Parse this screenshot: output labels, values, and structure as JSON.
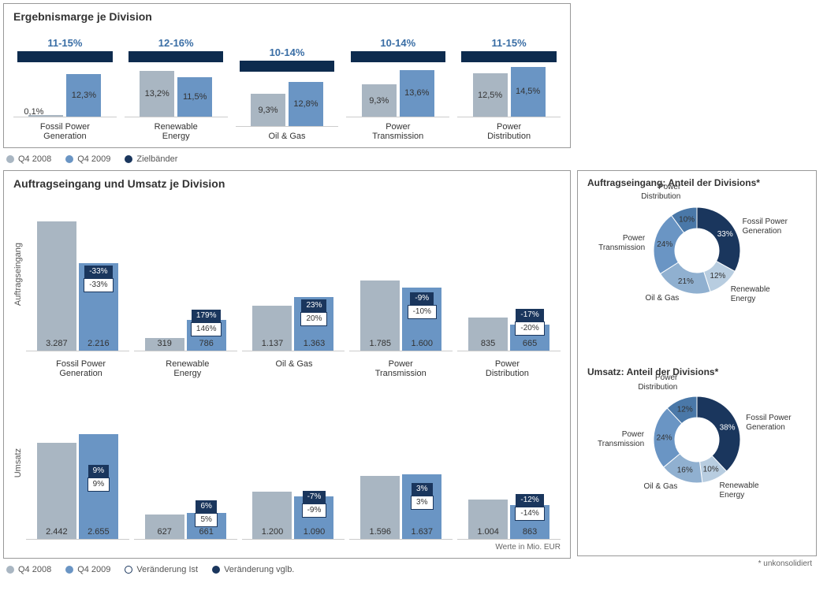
{
  "colors": {
    "gray": "#a9b6c2",
    "blue": "#6a95c4",
    "dark": "#1a365d",
    "text_blue": "#3a6ea5",
    "border": "#999999"
  },
  "chart1": {
    "title": "Ergebnismarge je Division",
    "max_pct": 16,
    "series_colors": [
      "#a9b6c2",
      "#6a95c4",
      "#1a365d"
    ],
    "legend": [
      "Q4 2008",
      "Q4 2009",
      "Zielbänder"
    ],
    "groups": [
      {
        "cat": "Fossil Power\nGeneration",
        "target": "11-15%",
        "v1": 0.1,
        "v1_label": "0,1%",
        "v2": 12.3,
        "v2_label": "12,3%"
      },
      {
        "cat": "Renewable\nEnergy",
        "target": "12-16%",
        "v1": 13.2,
        "v1_label": "13,2%",
        "v2": 11.5,
        "v2_label": "11,5%"
      },
      {
        "cat": "Oil & Gas",
        "target": "10-14%",
        "v1": 9.3,
        "v1_label": "9,3%",
        "v2": 12.8,
        "v2_label": "12,8%"
      },
      {
        "cat": "Power\nTransmission",
        "target": "10-14%",
        "v1": 9.3,
        "v1_label": "9,3%",
        "v2": 13.6,
        "v2_label": "13,6%"
      },
      {
        "cat": "Power\nDistribution",
        "target": "11-15%",
        "v1": 12.5,
        "v1_label": "12,5%",
        "v2": 14.5,
        "v2_label": "14,5%"
      }
    ]
  },
  "chart2": {
    "title": "Auftragseingang und Umsatz je Division",
    "ylabel1": "Auftragseingang",
    "ylabel2": "Umsatz",
    "max_val": 3300,
    "note": "Werte in Mio. EUR",
    "legend": [
      "Q4 2008",
      "Q4 2009",
      "Veränderung Ist",
      "Veränderung vglb."
    ],
    "cats": [
      "Fossil Power\nGeneration",
      "Renewable\nEnergy",
      "Oil & Gas",
      "Power\nTransmission",
      "Power\nDistribution"
    ],
    "orders": [
      {
        "v1": 3287,
        "v1_label": "3.287",
        "v2": 2216,
        "v2_label": "2.216",
        "chg_dark": "-33%",
        "chg_light": "-33%"
      },
      {
        "v1": 319,
        "v1_label": "319",
        "v2": 786,
        "v2_label": "786",
        "chg_dark": "179%",
        "chg_light": "146%"
      },
      {
        "v1": 1137,
        "v1_label": "1.137",
        "v2": 1363,
        "v2_label": "1.363",
        "chg_dark": "23%",
        "chg_light": "20%"
      },
      {
        "v1": 1785,
        "v1_label": "1.785",
        "v2": 1600,
        "v2_label": "1.600",
        "chg_dark": "-9%",
        "chg_light": "-10%"
      },
      {
        "v1": 835,
        "v1_label": "835",
        "v2": 665,
        "v2_label": "665",
        "chg_dark": "-17%",
        "chg_light": "-20%"
      }
    ],
    "revenue": [
      {
        "v1": 2442,
        "v1_label": "2.442",
        "v2": 2655,
        "v2_label": "2.655",
        "chg_dark": "9%",
        "chg_light": "9%"
      },
      {
        "v1": 627,
        "v1_label": "627",
        "v2": 661,
        "v2_label": "661",
        "chg_dark": "6%",
        "chg_light": "5%"
      },
      {
        "v1": 1200,
        "v1_label": "1.200",
        "v2": 1090,
        "v2_label": "1.090",
        "chg_dark": "-7%",
        "chg_light": "-9%"
      },
      {
        "v1": 1596,
        "v1_label": "1.596",
        "v2": 1637,
        "v2_label": "1.637",
        "chg_dark": "3%",
        "chg_light": "3%"
      },
      {
        "v1": 1004,
        "v1_label": "1.004",
        "v2": 863,
        "v2_label": "863",
        "chg_dark": "-12%",
        "chg_light": "-14%"
      }
    ]
  },
  "donut1": {
    "title": "Auftragseingang: Anteil der Divisions*",
    "slices": [
      {
        "label": "Fossil Power Generation",
        "pct": 33,
        "color": "#1a365d"
      },
      {
        "label": "Renewable\nEnergy",
        "pct": 12,
        "color": "#b8cde0"
      },
      {
        "label": "Oil & Gas",
        "pct": 21,
        "color": "#90b0d0"
      },
      {
        "label": "Power\nTransmission",
        "pct": 24,
        "color": "#6a95c4"
      },
      {
        "label": "Power\nDistribution",
        "pct": 10,
        "color": "#4a78a8"
      }
    ]
  },
  "donut2": {
    "title": "Umsatz: Anteil der Divisions*",
    "slices": [
      {
        "label": "Fossil Power Generation",
        "pct": 38,
        "color": "#1a365d"
      },
      {
        "label": "Renewable\nEnergy",
        "pct": 10,
        "color": "#b8cde0"
      },
      {
        "label": "Oil & Gas",
        "pct": 16,
        "color": "#90b0d0"
      },
      {
        "label": "Power\nTransmission",
        "pct": 24,
        "color": "#6a95c4"
      },
      {
        "label": "Power\nDistribution",
        "pct": 12,
        "color": "#4a78a8"
      }
    ]
  },
  "footnote": "* unkonsolidiert"
}
